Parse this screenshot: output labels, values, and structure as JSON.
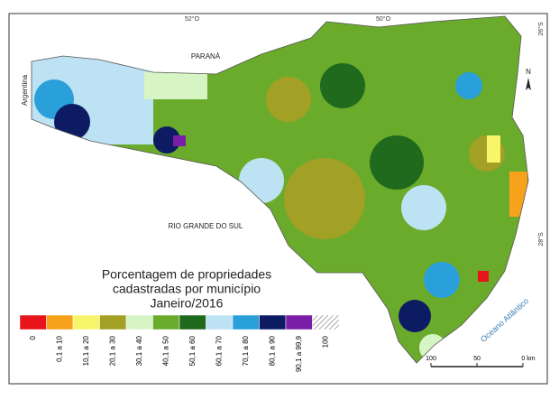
{
  "map": {
    "coordinates": {
      "top": [
        "52°O",
        "50°O"
      ],
      "right": [
        "26°S",
        "28°S"
      ]
    },
    "regions": {
      "argentina": "Argentina",
      "parana": "PARANÁ",
      "rio_grande_do_sul": "RIO GRANDE DO SUL",
      "ocean": "Oceano Atlântico"
    },
    "north": "N",
    "title": [
      "Porcentagem de propriedades",
      "cadastradas por município",
      "Janeiro/2016"
    ],
    "legend": [
      {
        "label": "0",
        "color": "#e8141c"
      },
      {
        "label": "0,1 a 10",
        "color": "#f7a21b"
      },
      {
        "label": "10,1 a 20",
        "color": "#f9f56a"
      },
      {
        "label": "20,1 a 30",
        "color": "#a3a026"
      },
      {
        "label": "30,1 a 40",
        "color": "#d7f4c4"
      },
      {
        "label": "40,1 a 50",
        "color": "#6aab2c"
      },
      {
        "label": "50,1 a 60",
        "color": "#1f6a1c"
      },
      {
        "label": "60,1 a 70",
        "color": "#bde2f4"
      },
      {
        "label": "70,1 a 80",
        "color": "#2aa0da"
      },
      {
        "label": "80,1 a 90",
        "color": "#0d1b63"
      },
      {
        "label": "90,1 a 99,9",
        "color": "#7a1ea8"
      },
      {
        "label": "100",
        "color": "hatch"
      }
    ],
    "scale": [
      "100",
      "50",
      "0 km"
    ]
  }
}
